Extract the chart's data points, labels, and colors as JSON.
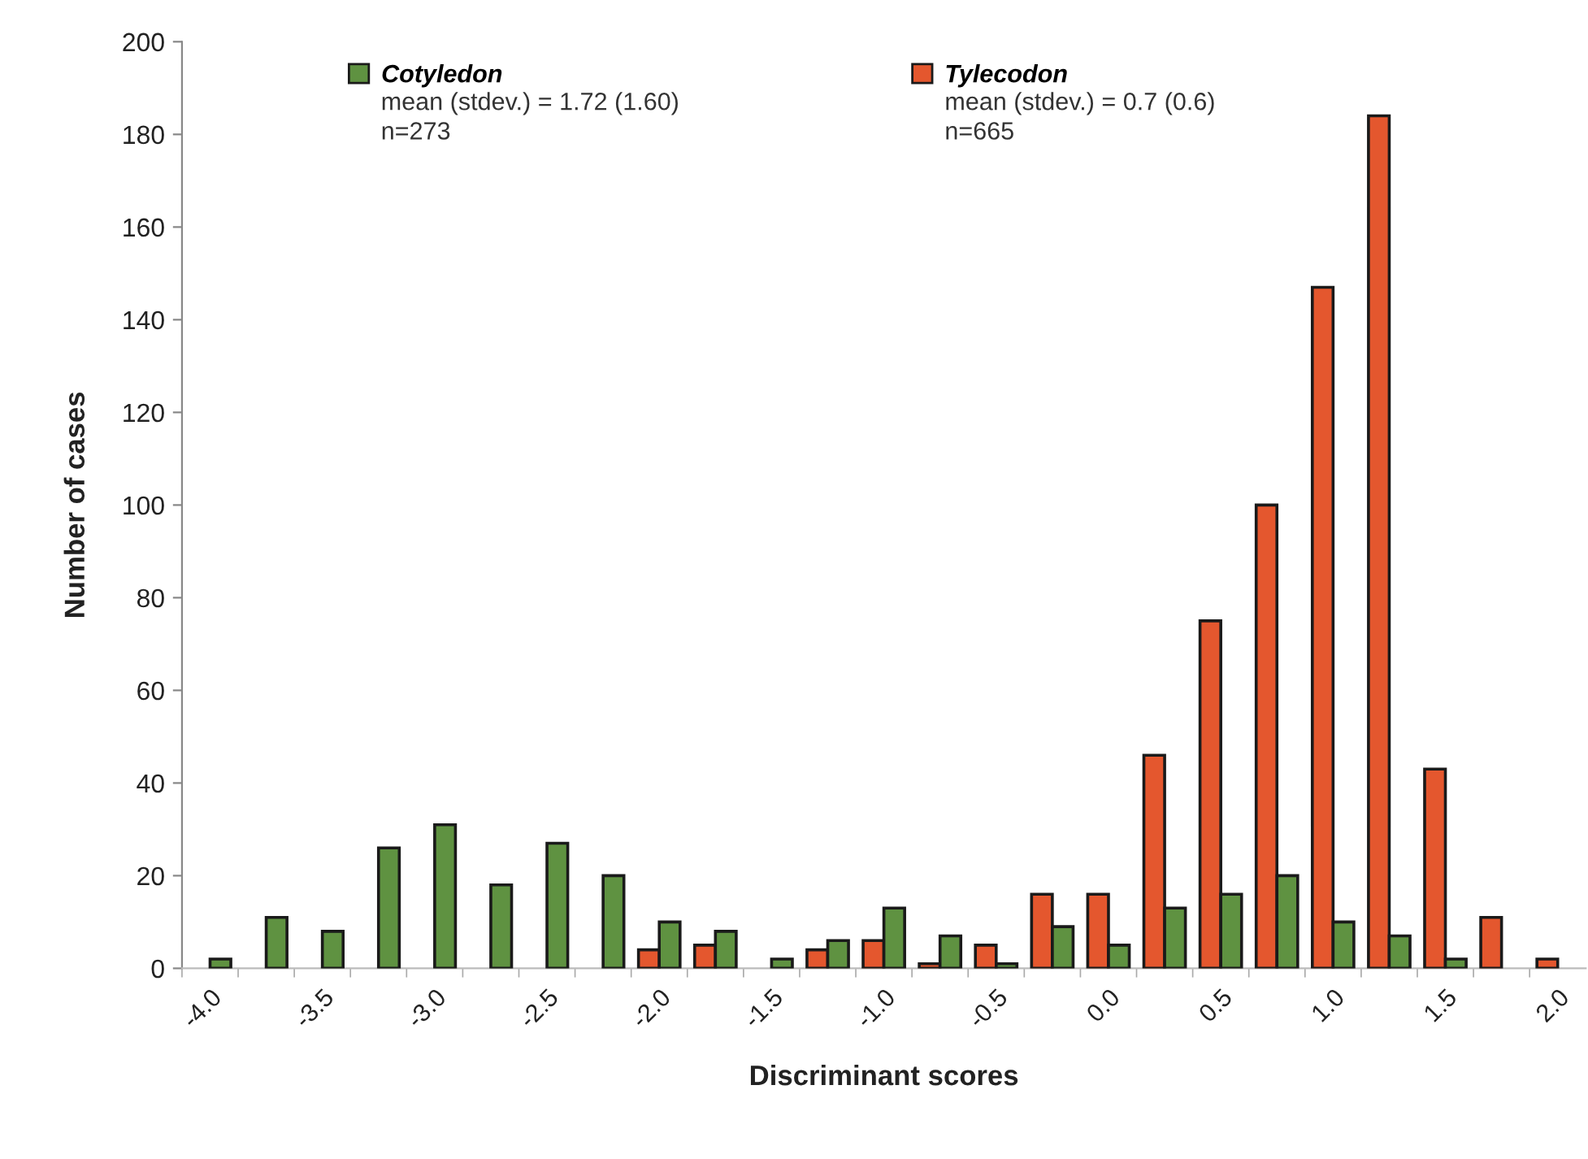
{
  "chart_data": {
    "type": "bar",
    "xlabel": "Discriminant scores",
    "ylabel": "Number of cases",
    "categories": [
      "-4.0",
      null,
      "-3.5",
      null,
      "-3.0",
      null,
      "-2.5",
      null,
      "-2.0",
      null,
      "-1.5",
      null,
      "-1.0",
      null,
      "-0.5",
      null,
      "0.0",
      null,
      "0.5",
      null,
      "1.0",
      null,
      "1.5",
      null,
      "2.0"
    ],
    "series": [
      {
        "name": "Tylecodon",
        "color": "#e4572e",
        "values": [
          null,
          null,
          null,
          null,
          null,
          null,
          null,
          null,
          4,
          5,
          null,
          4,
          6,
          1,
          5,
          16,
          16,
          46,
          75,
          100,
          147,
          184,
          43,
          11,
          2
        ]
      },
      {
        "name": "Cotyledon",
        "color": "#5f9241",
        "values": [
          2,
          11,
          8,
          26,
          31,
          18,
          27,
          20,
          10,
          8,
          2,
          6,
          13,
          7,
          1,
          9,
          5,
          13,
          16,
          20,
          10,
          7,
          2,
          null,
          null
        ]
      }
    ],
    "ylim": [
      0,
      200
    ],
    "yticks": [
      0,
      20,
      40,
      60,
      80,
      100,
      120,
      140,
      160,
      180,
      200
    ],
    "legend": "top",
    "annotations": [
      "mean (stdev.) = 1.72 (1.60)\nn=273",
      "mean (stdev.) = 0.7 (0.6)\nn=665"
    ]
  }
}
